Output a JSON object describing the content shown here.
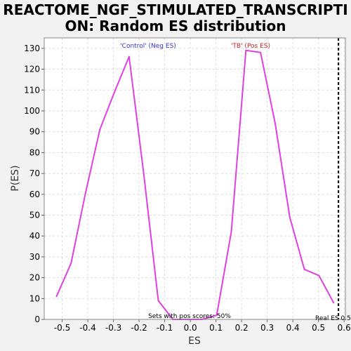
{
  "chart_data": {
    "type": "line",
    "title_line1": "REACTOME_NGF_STIMULATED_TRANSCRIPTI",
    "title_line2": "ON: Random ES distribution",
    "xlabel": "ES",
    "ylabel": "P(ES)",
    "xlim": [
      -0.57,
      0.605
    ],
    "ylim": [
      0,
      135
    ],
    "x_ticks": [
      -0.5,
      -0.4,
      -0.3,
      -0.2,
      -0.1,
      0.0,
      0.1,
      0.2,
      0.3,
      0.4,
      0.5,
      0.6
    ],
    "x_tick_labels": [
      "-0.5",
      "-0.4",
      "-0.3",
      "-0.2",
      "-0.1",
      "0.0",
      "0.1",
      "0.2",
      "0.3",
      "0.4",
      "0.5",
      "0.6"
    ],
    "y_ticks": [
      0,
      10,
      20,
      30,
      40,
      50,
      60,
      70,
      80,
      90,
      100,
      110,
      120,
      130
    ],
    "y_tick_labels": [
      "0",
      "10",
      "20",
      "30",
      "40",
      "50",
      "60",
      "70",
      "80",
      "90",
      "100",
      "110",
      "120",
      "130"
    ],
    "grid": true,
    "line_color": "#e040e0",
    "series": [
      {
        "x": [
          -0.522,
          -0.465,
          -0.41,
          -0.353,
          -0.296,
          -0.239,
          -0.182,
          -0.125,
          -0.068,
          -0.011,
          0.046,
          0.103,
          0.16,
          0.217,
          0.274,
          0.331,
          0.388,
          0.445,
          0.502,
          0.559
        ],
        "y": [
          11,
          27,
          60,
          91,
          109,
          126,
          70,
          9,
          0,
          0,
          0,
          2,
          42,
          129,
          128,
          94,
          49,
          24,
          21,
          8
        ]
      }
    ],
    "annotations": {
      "neg_label": "'Control' (Neg ES)",
      "neg_color": "#3333cc",
      "pos_label": "'TB' (Pos ES)",
      "pos_color": "#cc2222",
      "pos_scores_label": "Sets with pos scores: 50%",
      "real_es_label": "Real ES 0.5",
      "real_es_x": 0.578
    }
  }
}
